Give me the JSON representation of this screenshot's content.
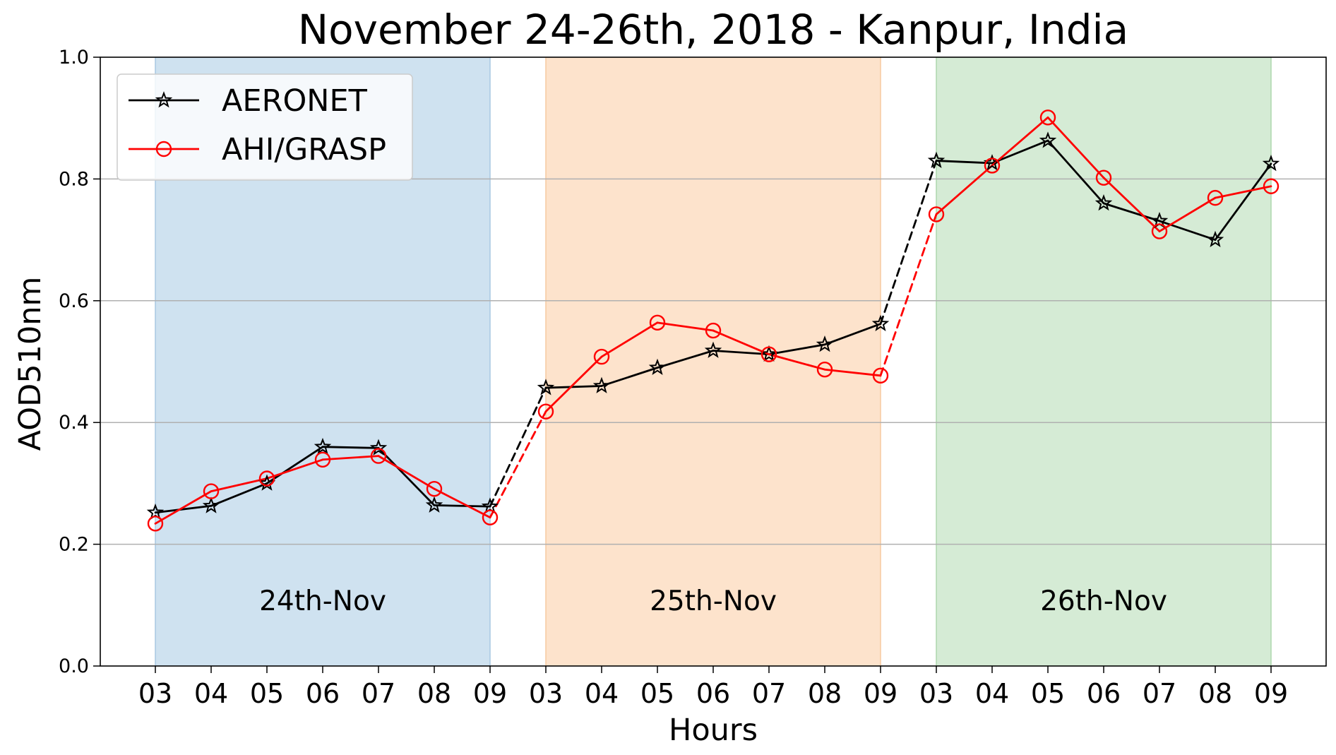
{
  "chart_data": {
    "type": "line",
    "title": "November 24-26th, 2018 - Kanpur, India",
    "xlabel": "Hours",
    "ylabel": "AOD510nm",
    "ylim": [
      0.0,
      1.0
    ],
    "yticks": [
      "0.0",
      "0.2",
      "0.4",
      "0.6",
      "0.8",
      "1.0"
    ],
    "grid": "horizontal",
    "legend_position": "top-left",
    "x": [
      "03",
      "04",
      "05",
      "06",
      "07",
      "08",
      "09",
      "03",
      "04",
      "05",
      "06",
      "07",
      "08",
      "09",
      "03",
      "04",
      "05",
      "06",
      "07",
      "08",
      "09"
    ],
    "day_bands": [
      {
        "label": "24th-Nov",
        "start_index": 0,
        "end_index": 6,
        "color": "#cfe2f0",
        "edge": "#a9c8e2"
      },
      {
        "label": "25th-Nov",
        "start_index": 7,
        "end_index": 13,
        "color": "#fde3cc",
        "edge": "#f7c9a0"
      },
      {
        "label": "26th-Nov",
        "start_index": 14,
        "end_index": 20,
        "color": "#d5ebd5",
        "edge": "#add7ad"
      }
    ],
    "series": [
      {
        "name": "AERONET",
        "color": "#000000",
        "marker": "star",
        "values": [
          0.252,
          0.263,
          0.3,
          0.36,
          0.358,
          0.264,
          0.262,
          0.457,
          0.46,
          0.49,
          0.518,
          0.512,
          0.528,
          0.562,
          0.83,
          0.826,
          0.863,
          0.76,
          0.731,
          0.7,
          0.825
        ]
      },
      {
        "name": "AHI/GRASP",
        "color": "#ff0000",
        "marker": "circle",
        "values": [
          0.234,
          0.287,
          0.308,
          0.339,
          0.345,
          0.291,
          0.244,
          0.418,
          0.508,
          0.564,
          0.551,
          0.512,
          0.487,
          0.477,
          0.742,
          0.822,
          0.901,
          0.802,
          0.714,
          0.769,
          0.788
        ]
      }
    ]
  }
}
